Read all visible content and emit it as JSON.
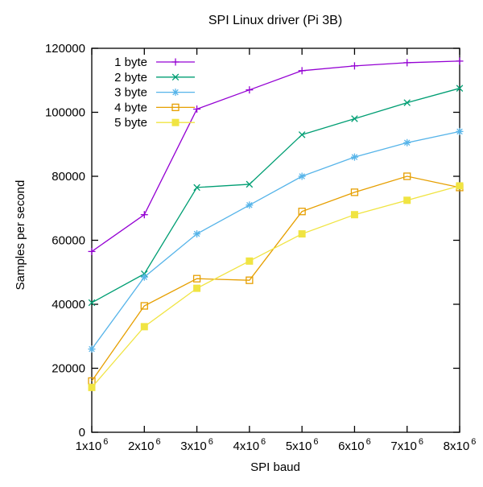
{
  "window": {
    "background": "#ffffff"
  },
  "chart_data": {
    "type": "line",
    "title": "SPI Linux driver (Pi 3B)",
    "xlabel": "SPI baud",
    "ylabel": "Samples per second",
    "x": [
      1000000,
      2000000,
      3000000,
      4000000,
      5000000,
      6000000,
      7000000,
      8000000
    ],
    "x_tick_labels": [
      {
        "mant": "1x10",
        "exp": "6"
      },
      {
        "mant": "2x10",
        "exp": "6"
      },
      {
        "mant": "3x10",
        "exp": "6"
      },
      {
        "mant": "4x10",
        "exp": "6"
      },
      {
        "mant": "5x10",
        "exp": "6"
      },
      {
        "mant": "6x10",
        "exp": "6"
      },
      {
        "mant": "7x10",
        "exp": "6"
      },
      {
        "mant": "8x10",
        "exp": "6"
      }
    ],
    "y_ticks": [
      0,
      20000,
      40000,
      60000,
      80000,
      100000,
      120000
    ],
    "y_tick_labels": [
      "0",
      "20000",
      "40000",
      "60000",
      "80000",
      "100000",
      "120000"
    ],
    "xlim": [
      1000000,
      8000000
    ],
    "ylim": [
      0,
      120000
    ],
    "grid": false,
    "legend_position": "top-left",
    "axis_color": "#000000",
    "text_color": "#000000",
    "series": [
      {
        "name": "1 byte",
        "color": "#9400d3",
        "marker": "plus",
        "values": [
          56500,
          68000,
          101000,
          107000,
          113000,
          114500,
          115500,
          116000
        ]
      },
      {
        "name": "2 byte",
        "color": "#009e73",
        "marker": "cross",
        "values": [
          40500,
          49500,
          76500,
          77500,
          93000,
          98000,
          103000,
          107500
        ]
      },
      {
        "name": "3 byte",
        "color": "#56b4e9",
        "marker": "asterisk",
        "values": [
          26000,
          48500,
          62000,
          71000,
          80000,
          86000,
          90500,
          94000
        ]
      },
      {
        "name": "4 byte",
        "color": "#e69f00",
        "marker": "open-square",
        "values": [
          16000,
          39500,
          48000,
          47500,
          69000,
          75000,
          80000,
          76500
        ]
      },
      {
        "name": "5 byte",
        "color": "#f0e442",
        "marker": "filled-square",
        "values": [
          14000,
          33000,
          45000,
          53500,
          62000,
          68000,
          72500,
          77000
        ]
      }
    ]
  }
}
